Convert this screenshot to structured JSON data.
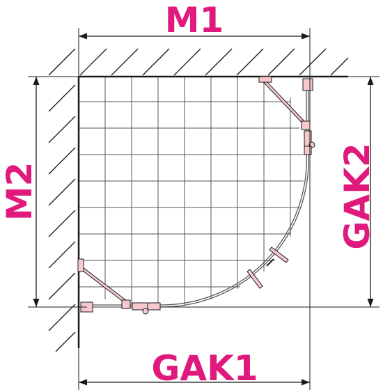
{
  "labels": {
    "top_width": "M1",
    "left_height": "M2",
    "bottom_width": "GAK1",
    "right_height": "GAK2"
  },
  "colors": {
    "dimension_label": "#e0197d",
    "hardware": "#f7c9cf",
    "line": "#1a1a1a",
    "grid": "#555555"
  }
}
